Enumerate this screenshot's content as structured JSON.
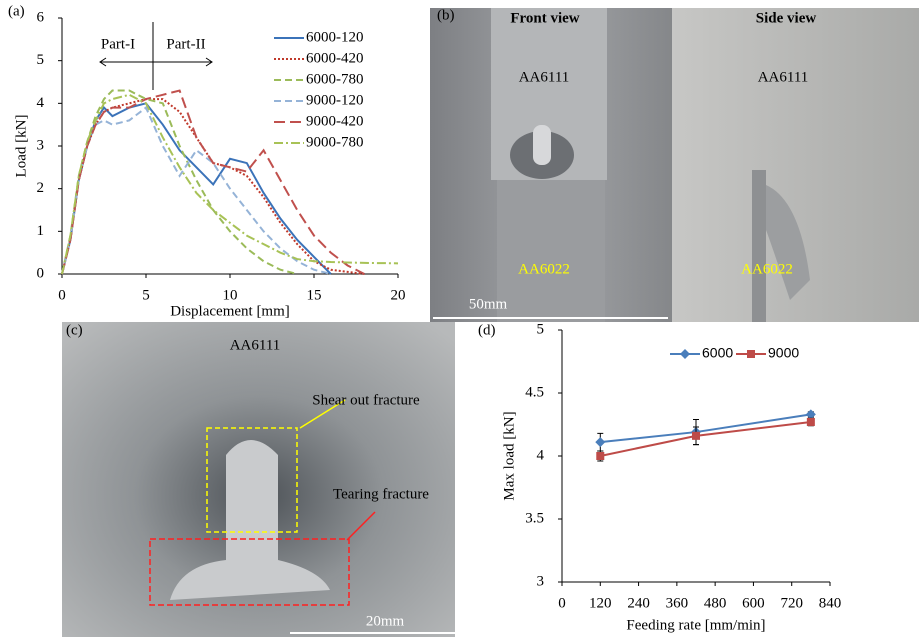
{
  "chart_data": [
    {
      "type": "line",
      "label": "(a)",
      "xlabel": "Displacement [mm]",
      "ylabel": "Load [kN]",
      "annotations": [
        "Part-I",
        "Part-II"
      ],
      "x": [
        0,
        0.5,
        1,
        1.5,
        2,
        2.5,
        3,
        4,
        5,
        6,
        7,
        8,
        9,
        10,
        11,
        12,
        13,
        14,
        15,
        16,
        17,
        18,
        20
      ],
      "xlim": [
        0,
        20
      ],
      "xticks": [
        0,
        5,
        10,
        15,
        20
      ],
      "ylim": [
        0,
        6
      ],
      "yticks": [
        0,
        1,
        2,
        3,
        4,
        5,
        6
      ],
      "legend": "upper right",
      "series": [
        {
          "name": "6000-120",
          "color": "#3b73b9",
          "dash": "solid",
          "values": [
            0,
            0.8,
            2.2,
            3.0,
            3.6,
            3.9,
            3.7,
            3.9,
            4.0,
            3.5,
            2.9,
            2.5,
            2.1,
            2.7,
            2.6,
            1.9,
            1.3,
            0.8,
            0.4,
            0,
            null,
            null,
            null
          ]
        },
        {
          "name": "6000-420",
          "color": "#c0392b",
          "dash": "dotted",
          "values": [
            0,
            0.8,
            2.2,
            3.0,
            3.5,
            3.8,
            3.9,
            4.0,
            4.1,
            4.1,
            3.8,
            3.2,
            2.6,
            2.5,
            2.3,
            1.8,
            1.2,
            0.7,
            0.3,
            0.1,
            0.05,
            0,
            null
          ]
        },
        {
          "name": "6000-780",
          "color": "#9bbb59",
          "dash": "dashed",
          "values": [
            0,
            0.9,
            2.3,
            3.1,
            3.7,
            4.1,
            4.3,
            4.3,
            4.1,
            4.0,
            3.0,
            2.2,
            1.5,
            1.0,
            0.6,
            0.3,
            0.1,
            0,
            null,
            null,
            null,
            null,
            null
          ]
        },
        {
          "name": "9000-120",
          "color": "#95b3d7",
          "dash": "dashed",
          "values": [
            0,
            0.8,
            2.2,
            3.0,
            3.5,
            3.6,
            3.5,
            3.6,
            3.9,
            3.0,
            2.3,
            2.9,
            2.6,
            2.0,
            1.5,
            1.0,
            0.6,
            0.3,
            0.1,
            0,
            null,
            null,
            null
          ]
        },
        {
          "name": "9000-420",
          "color": "#c0504d",
          "dash": "longdash",
          "values": [
            0,
            0.8,
            2.2,
            3.0,
            3.5,
            3.8,
            3.9,
            3.9,
            4.1,
            4.2,
            4.3,
            3.2,
            2.6,
            2.5,
            2.4,
            2.9,
            2.2,
            1.5,
            0.9,
            0.5,
            0.2,
            0,
            null
          ]
        },
        {
          "name": "9000-780",
          "color": "#a8c256",
          "dash": "dashdot",
          "values": [
            0,
            0.9,
            2.3,
            3.1,
            3.6,
            4.0,
            4.1,
            4.2,
            4.0,
            3.2,
            2.5,
            1.9,
            1.5,
            1.2,
            0.9,
            0.7,
            0.5,
            0.35,
            0.3,
            0.28,
            0.27,
            0.26,
            0.25
          ]
        }
      ]
    },
    {
      "type": "errorline",
      "label": "(d)",
      "xlabel": "Feeding rate [mm/min]",
      "ylabel": "Max load [kN]",
      "x": [
        120,
        420,
        780
      ],
      "xlim": [
        0,
        840
      ],
      "xticks": [
        0,
        120,
        240,
        360,
        480,
        600,
        720,
        840
      ],
      "ylim": [
        3,
        5
      ],
      "yticks": [
        3,
        3.5,
        4,
        4.5,
        5
      ],
      "legend": "upper right",
      "series": [
        {
          "name": "6000",
          "color": "#4a7ebb",
          "marker": "diamond",
          "values": [
            4.11,
            4.19,
            4.33
          ],
          "errors": [
            0.07,
            0.1,
            0.02
          ]
        },
        {
          "name": "9000",
          "color": "#be4b48",
          "marker": "square",
          "values": [
            4.0,
            4.16,
            4.27
          ],
          "errors": [
            0.04,
            0.07,
            0.03
          ]
        }
      ]
    }
  ],
  "photos": {
    "b": {
      "label": "(b)",
      "front_view": "Front view",
      "side_view": "Side view",
      "upper": [
        "AA6111",
        "AA6111"
      ],
      "lower": [
        "AA6022",
        "AA6022"
      ],
      "scale": "50mm"
    },
    "c": {
      "label": "(c)",
      "material": "AA6111",
      "shear": "Shear out fracture",
      "tearing": "Tearing fracture",
      "scale": "20mm"
    }
  }
}
